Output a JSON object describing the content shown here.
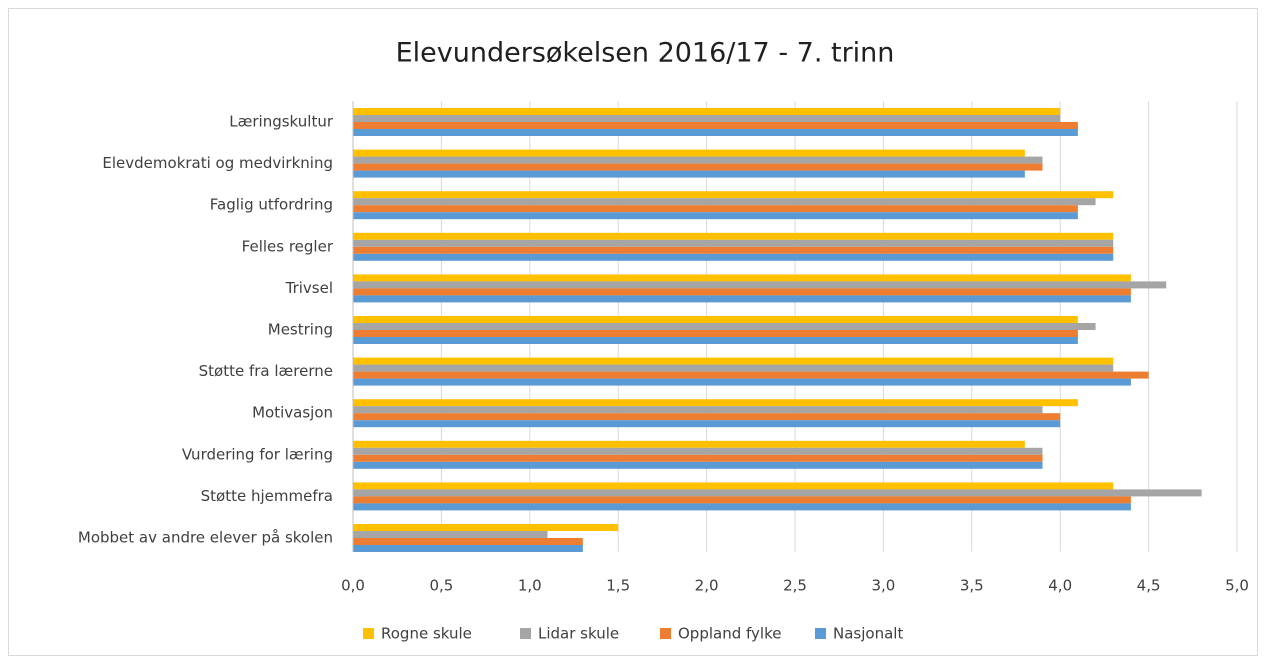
{
  "chart_data": {
    "type": "hbar",
    "title": "Elevundersøkelsen 2016/17 - 7. trinn",
    "categories": [
      "Læringskultur",
      "Elevdemokrati og medvirkning",
      "Faglig utfordring",
      "Felles regler",
      "Trivsel",
      "Mestring",
      "Støtte fra lærerne",
      "Motivasjon",
      "Vurdering for læring",
      "Støtte hjemmefra",
      "Mobbet av andre elever på skolen"
    ],
    "series": [
      {
        "name": "Rogne skule",
        "color": "#FFC000",
        "values": [
          4.0,
          3.8,
          4.3,
          4.3,
          4.4,
          4.1,
          4.3,
          4.1,
          3.8,
          4.3,
          1.5
        ]
      },
      {
        "name": "Lidar skule",
        "color": "#A5A5A5",
        "values": [
          4.0,
          3.9,
          4.2,
          4.3,
          4.6,
          4.2,
          4.3,
          3.9,
          3.9,
          4.8,
          1.1
        ]
      },
      {
        "name": "Oppland fylke",
        "color": "#ED7D31",
        "values": [
          4.1,
          3.9,
          4.1,
          4.3,
          4.4,
          4.1,
          4.5,
          4.0,
          3.9,
          4.4,
          1.3
        ]
      },
      {
        "name": "Nasjonalt",
        "color": "#5B9BD5",
        "values": [
          4.1,
          3.8,
          4.1,
          4.3,
          4.4,
          4.1,
          4.4,
          4.0,
          3.9,
          4.4,
          1.3
        ]
      }
    ],
    "xlim": [
      0,
      5
    ],
    "xticks": [
      {
        "value": 0,
        "label": "0,0"
      },
      {
        "value": 0.5,
        "label": "0,5"
      },
      {
        "value": 1,
        "label": "1,0"
      },
      {
        "value": 1.5,
        "label": "1,5"
      },
      {
        "value": 2,
        "label": "2,0"
      },
      {
        "value": 2.5,
        "label": "2,5"
      },
      {
        "value": 3,
        "label": "3,0"
      },
      {
        "value": 3.5,
        "label": "3,5"
      },
      {
        "value": 4,
        "label": "4,0"
      },
      {
        "value": 4.5,
        "label": "4,5"
      },
      {
        "value": 5,
        "label": "5,0"
      }
    ],
    "grid": true,
    "legend": "bottom"
  }
}
